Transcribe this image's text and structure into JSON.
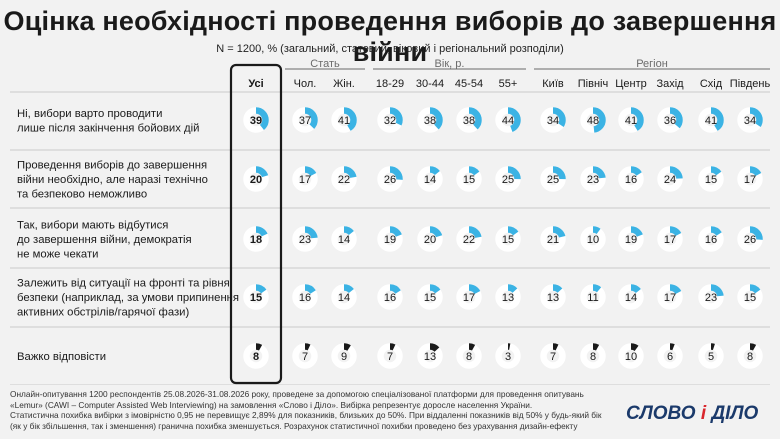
{
  "title": "Оцінка необхідності проведення виборів до завершення війни",
  "subtitle": "N = 1200, % (загальний, статевий, віковий і регіональний розподіли)",
  "footer": [
    "Онлайн-опитування 1200 респондентів 25.08.2026-31.08.2026 року, проведене за допомогою спеціалізованої платформи для проведення опитувань",
    "«Lemur» (CAWI – Computer Assisted Web Interviewing) на замовлення «Слово і Діло». Вибірка репрезентує доросле населення України.",
    "Статистична похибка вибірки з імовірністю 0,95 не перевищує 2,89% для показників, близьких до 50%. При віддаленні показників від 50% у будь-який бік",
    "(як у бік збільшення, так і зменшення) гранична похибка зменшується. Розрахунок статистичної похибки проведено без урахування дизайн-ефекту"
  ],
  "logo": {
    "part1": "СЛОВО",
    "part2": "і",
    "part3": "ДІЛО"
  },
  "colors": {
    "accent": "#3bb3e4",
    "black": "#1a1a1a",
    "ring_bg": "#ffffff",
    "divider": "#c9c9c9",
    "label_gray": "#6b6b6b"
  },
  "chart_data": {
    "type": "table",
    "groups": [
      {
        "name": "",
        "columns": [
          0
        ]
      },
      {
        "name": "Стать",
        "columns": [
          1,
          2
        ]
      },
      {
        "name": "Вік, р.",
        "columns": [
          3,
          4,
          5,
          6
        ]
      },
      {
        "name": "Регіон",
        "columns": [
          7,
          8,
          9,
          10,
          11,
          12
        ]
      }
    ],
    "columns": [
      "Усі",
      "Чол.",
      "Жін.",
      "18-29",
      "30-44",
      "45-54",
      "55+",
      "Київ",
      "Північ",
      "Центр",
      "Захід",
      "Схід",
      "Південь"
    ],
    "rows": [
      {
        "label": [
          "Ні, вибори варто проводити",
          "лише після закінчення бойових дій"
        ],
        "values": [
          39,
          37,
          41,
          32,
          38,
          38,
          44,
          34,
          48,
          41,
          36,
          41,
          34
        ],
        "highlight_first": false
      },
      {
        "label": [
          "Проведення виборів до завершення",
          "війни необхідно, але наразі технічно",
          "та безпеково неможливо"
        ],
        "values": [
          20,
          17,
          22,
          26,
          14,
          15,
          25,
          25,
          23,
          16,
          24,
          15,
          17
        ],
        "highlight_first": false
      },
      {
        "label": [
          "Так, вибори мають відбутися",
          "до завершення війни, демократія",
          "не може чекати"
        ],
        "values": [
          18,
          23,
          14,
          19,
          20,
          22,
          15,
          21,
          10,
          19,
          17,
          16,
          26
        ],
        "highlight_first": false
      },
      {
        "label": [
          "Залежить від ситуації на фронті та рівня",
          "безпеки (наприклад, за умови припинення",
          "активних обстрілів/гарячої фази)"
        ],
        "values": [
          15,
          16,
          14,
          16,
          15,
          17,
          13,
          13,
          11,
          14,
          17,
          23,
          15
        ],
        "highlight_first": false
      },
      {
        "label": [
          "Важко відповісти"
        ],
        "values": [
          8,
          7,
          9,
          7,
          13,
          8,
          3,
          7,
          8,
          10,
          6,
          5,
          8
        ],
        "highlight_first": false,
        "dark": true
      }
    ]
  }
}
